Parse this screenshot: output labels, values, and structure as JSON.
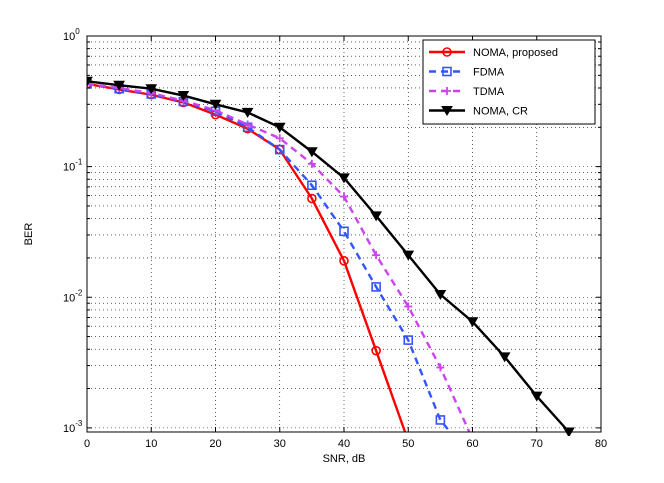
{
  "chart_data": {
    "type": "line",
    "xlabel": "SNR, dB",
    "ylabel": "BER",
    "x_scale": "linear",
    "y_scale": "log",
    "xlim": [
      0,
      80
    ],
    "ylim": [
      0.00093,
      1
    ],
    "grid": true,
    "legend_position": "top-right",
    "x_ticks": [
      0,
      10,
      20,
      30,
      40,
      50,
      60,
      70,
      80
    ],
    "x_tick_labels": [
      "0",
      "10",
      "20",
      "30",
      "40",
      "50",
      "60",
      "70",
      "80"
    ],
    "y_ticks": [
      1,
      0.1,
      0.01,
      0.001
    ],
    "y_tick_labels": [
      {
        "base": "10",
        "exp": "0"
      },
      {
        "base": "10",
        "exp": "-1"
      },
      {
        "base": "10",
        "exp": "-2"
      },
      {
        "base": "10",
        "exp": "-3"
      }
    ],
    "series": [
      {
        "name": "NOMA, proposed",
        "color": "#ff0000",
        "line_style": "solid",
        "marker": "circle",
        "x": [
          0,
          5,
          10,
          15,
          20,
          25,
          30,
          35,
          40,
          45,
          49.5
        ],
        "y": [
          0.43,
          0.39,
          0.355,
          0.31,
          0.25,
          0.195,
          0.135,
          0.057,
          0.019,
          0.0039,
          0.00093
        ],
        "marker_x": [
          0,
          5,
          10,
          15,
          20,
          25,
          30,
          35,
          40,
          45
        ]
      },
      {
        "name": "FDMA",
        "color": "#3355ff",
        "line_style": "dashed",
        "marker": "square",
        "x": [
          0,
          5,
          10,
          15,
          20,
          25,
          30,
          35,
          40,
          45,
          50,
          55,
          56.5
        ],
        "y": [
          0.43,
          0.395,
          0.36,
          0.315,
          0.265,
          0.2,
          0.135,
          0.072,
          0.032,
          0.012,
          0.0047,
          0.00115,
          0.00093
        ],
        "marker_x": [
          0,
          5,
          10,
          15,
          20,
          25,
          30,
          35,
          40,
          45,
          50,
          55
        ]
      },
      {
        "name": "TDMA",
        "color": "#cc44ee",
        "line_style": "dashed",
        "marker": "plus",
        "x": [
          0,
          5,
          10,
          15,
          20,
          25,
          30,
          35,
          40,
          45,
          50,
          55,
          59.5
        ],
        "y": [
          0.43,
          0.4,
          0.365,
          0.32,
          0.27,
          0.21,
          0.165,
          0.105,
          0.059,
          0.021,
          0.0085,
          0.0029,
          0.00093
        ],
        "marker_x": [
          0,
          5,
          10,
          15,
          20,
          25,
          30,
          35,
          40,
          45,
          50,
          55
        ]
      },
      {
        "name": "NOMA, CR",
        "color": "#000000",
        "line_style": "solid",
        "marker": "triangle-down",
        "x": [
          0,
          5,
          10,
          15,
          20,
          25,
          30,
          35,
          40,
          45,
          50,
          55,
          60,
          65,
          70,
          75
        ],
        "y": [
          0.45,
          0.42,
          0.395,
          0.35,
          0.3,
          0.26,
          0.2,
          0.13,
          0.082,
          0.042,
          0.021,
          0.0105,
          0.0065,
          0.0035,
          0.00175,
          0.00093
        ],
        "marker_x": [
          0,
          5,
          10,
          15,
          20,
          25,
          30,
          35,
          40,
          45,
          50,
          55,
          60,
          65,
          70,
          75
        ]
      }
    ]
  }
}
